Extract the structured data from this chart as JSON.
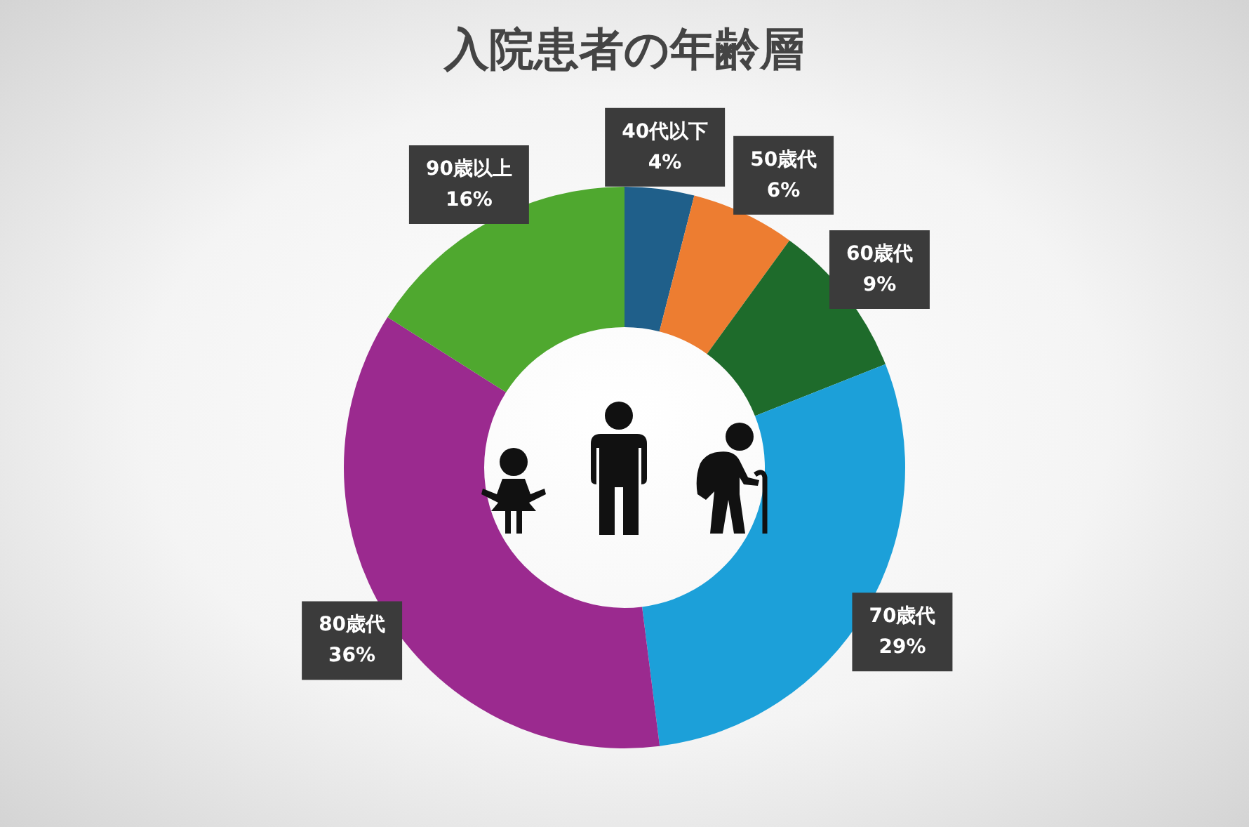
{
  "chart_data": {
    "type": "donut",
    "title": "入院患者の年齢層",
    "categories": [
      "40代以下",
      "50歳代",
      "60歳代",
      "70歳代",
      "80歳代",
      "90歳以上"
    ],
    "values": [
      4,
      6,
      9,
      29,
      36,
      16
    ],
    "colors": [
      "#1f5f8a",
      "#ed7d31",
      "#1e6b2b",
      "#1ca0d9",
      "#9b2a8f",
      "#4fa82f"
    ],
    "value_labels": [
      "4%",
      "6%",
      "9%",
      "29%",
      "36%",
      "16%"
    ],
    "legend": false
  }
}
